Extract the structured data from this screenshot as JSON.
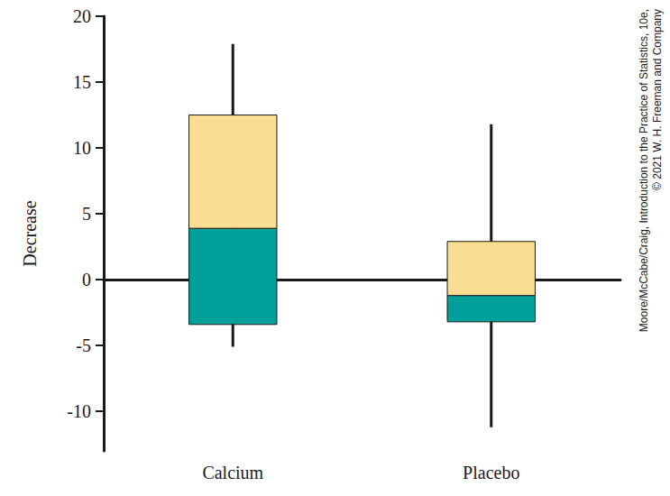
{
  "chart_data": {
    "type": "boxplot",
    "y_label": "Decrease",
    "categories": [
      "Calcium",
      "Placebo"
    ],
    "min": [
      -5.1,
      -11.2
    ],
    "q1": [
      -3.4,
      -3.2
    ],
    "median": [
      3.9,
      -1.2
    ],
    "q3": [
      12.5,
      2.9
    ],
    "max": [
      17.9,
      11.8
    ],
    "colors": [
      "#00a09a",
      "#f9dd93"
    ],
    "ylim": [
      -13,
      20
    ],
    "yticks": [
      -10,
      -5,
      0,
      5,
      10,
      15,
      20
    ],
    "grid": false,
    "annotations": [
      "Moore/McCabe/Craig, Introduction to the Practice of Statistics, 10e,",
      "© 2021 W. H. Freeman and Company"
    ]
  }
}
